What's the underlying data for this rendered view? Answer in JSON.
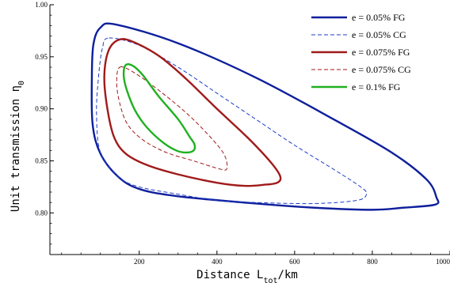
{
  "chart_data": {
    "type": "line",
    "xlabel": "Distance L",
    "xlabel_sub": "tot",
    "xlabel_unit": "/km",
    "ylabel": "Unit transmission η",
    "ylabel_sub": "0",
    "xlim": [
      -30,
      1000
    ],
    "ylim": [
      0.76,
      1.0
    ],
    "x_ticks": [
      200,
      400,
      600,
      800,
      1000
    ],
    "x_tick_labels": [
      "200",
      "400",
      "600",
      "800",
      "1000"
    ],
    "y_ticks": [
      0.8,
      0.85,
      0.9,
      0.95,
      1.0
    ],
    "y_tick_labels": [
      "0.80",
      "0.85",
      "0.90",
      "0.95",
      "1.00"
    ],
    "grid": false,
    "legend_position": "top-right",
    "legend": [
      "e = 0.05% FG",
      "e = 0.05% CG",
      "e = 0.075% FG",
      "e = 0.075% CG",
      "e = 0.1% FG"
    ],
    "series": [
      {
        "name": "e = 0.05% FG",
        "color": "#0e1f9c",
        "dash": "solid",
        "width": 2.4,
        "closed": true,
        "points": [
          [
            140,
            0.981
          ],
          [
            300,
            0.963
          ],
          [
            500,
            0.93
          ],
          [
            700,
            0.89
          ],
          [
            850,
            0.858
          ],
          [
            940,
            0.832
          ],
          [
            965,
            0.815
          ],
          [
            962,
            0.808
          ],
          [
            880,
            0.805
          ],
          [
            800,
            0.803
          ],
          [
            650,
            0.805
          ],
          [
            500,
            0.809
          ],
          [
            300,
            0.816
          ],
          [
            200,
            0.823
          ],
          [
            145,
            0.835
          ],
          [
            100,
            0.857
          ],
          [
            80,
            0.885
          ],
          [
            78,
            0.93
          ],
          [
            82,
            0.962
          ],
          [
            100,
            0.978
          ],
          [
            140,
            0.981
          ]
        ]
      },
      {
        "name": "e = 0.05% CG",
        "color": "#1e3cc8",
        "dash": "dashed",
        "width": 1.0,
        "closed": true,
        "points": [
          [
            122,
            0.968
          ],
          [
            200,
            0.961
          ],
          [
            300,
            0.94
          ],
          [
            400,
            0.915
          ],
          [
            500,
            0.89
          ],
          [
            600,
            0.865
          ],
          [
            700,
            0.842
          ],
          [
            770,
            0.825
          ],
          [
            785,
            0.818
          ],
          [
            760,
            0.812
          ],
          [
            650,
            0.809
          ],
          [
            500,
            0.81
          ],
          [
            400,
            0.812
          ],
          [
            300,
            0.818
          ],
          [
            200,
            0.825
          ],
          [
            145,
            0.835
          ],
          [
            100,
            0.858
          ],
          [
            90,
            0.895
          ],
          [
            95,
            0.93
          ],
          [
            105,
            0.958
          ],
          [
            122,
            0.968
          ]
        ]
      },
      {
        "name": "e = 0.075% FG",
        "color": "#a01a1a",
        "dash": "solid",
        "width": 2.4,
        "closed": true,
        "points": [
          [
            145,
            0.966
          ],
          [
            180,
            0.965
          ],
          [
            250,
            0.951
          ],
          [
            320,
            0.929
          ],
          [
            400,
            0.9
          ],
          [
            480,
            0.872
          ],
          [
            540,
            0.848
          ],
          [
            563,
            0.835
          ],
          [
            555,
            0.829
          ],
          [
            520,
            0.827
          ],
          [
            470,
            0.826
          ],
          [
            400,
            0.829
          ],
          [
            300,
            0.837
          ],
          [
            220,
            0.846
          ],
          [
            165,
            0.857
          ],
          [
            135,
            0.873
          ],
          [
            118,
            0.9
          ],
          [
            110,
            0.93
          ],
          [
            120,
            0.955
          ],
          [
            145,
            0.966
          ]
        ]
      },
      {
        "name": "e = 0.075% CG",
        "color": "#a01a1a",
        "dash": "dashed",
        "width": 1.0,
        "closed": true,
        "points": [
          [
            150,
            0.94
          ],
          [
            190,
            0.934
          ],
          [
            260,
            0.915
          ],
          [
            330,
            0.893
          ],
          [
            390,
            0.87
          ],
          [
            420,
            0.855
          ],
          [
            425,
            0.842
          ],
          [
            400,
            0.843
          ],
          [
            340,
            0.85
          ],
          [
            270,
            0.858
          ],
          [
            210,
            0.87
          ],
          [
            170,
            0.885
          ],
          [
            150,
            0.905
          ],
          [
            142,
            0.925
          ],
          [
            150,
            0.94
          ]
        ]
      },
      {
        "name": "e = 0.1% FG",
        "color": "#20b020",
        "dash": "solid",
        "width": 2.4,
        "closed": true,
        "points": [
          [
            165,
            0.942
          ],
          [
            185,
            0.941
          ],
          [
            210,
            0.932
          ],
          [
            250,
            0.912
          ],
          [
            300,
            0.89
          ],
          [
            330,
            0.873
          ],
          [
            342,
            0.866
          ],
          [
            340,
            0.86
          ],
          [
            320,
            0.858
          ],
          [
            295,
            0.86
          ],
          [
            260,
            0.868
          ],
          [
            220,
            0.882
          ],
          [
            190,
            0.898
          ],
          [
            168,
            0.918
          ],
          [
            160,
            0.932
          ],
          [
            165,
            0.942
          ]
        ]
      }
    ]
  }
}
